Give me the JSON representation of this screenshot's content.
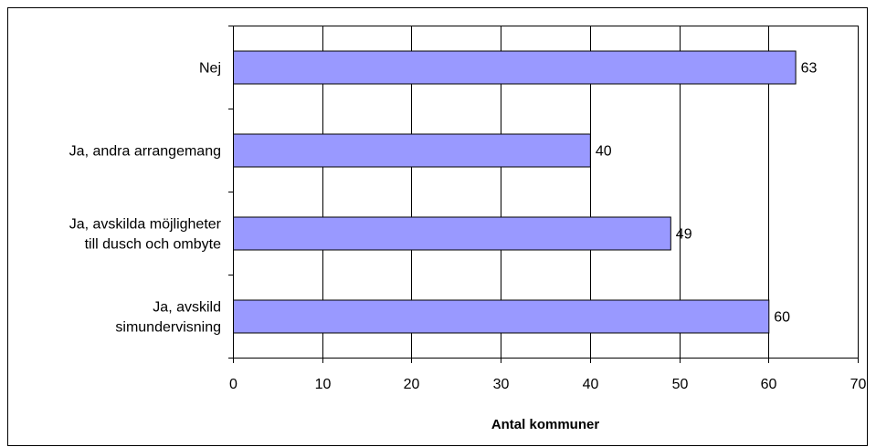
{
  "chart_data": {
    "type": "bar",
    "orientation": "horizontal",
    "title": "",
    "xlabel": "Antal kommuner",
    "ylabel": "",
    "xlim": [
      0,
      70
    ],
    "x_ticks": [
      0,
      10,
      20,
      30,
      40,
      50,
      60,
      70
    ],
    "x_tick_labels": [
      "0",
      "10",
      "20",
      "30",
      "40",
      "50",
      "60",
      "70"
    ],
    "grid": "vertical",
    "legend": "none",
    "categories": [
      [
        "Nej"
      ],
      [
        "Ja, andra arrangemang"
      ],
      [
        "Ja, avskilda möjligheter",
        "till dusch och ombyte"
      ],
      [
        "Ja, avskild",
        "simundervisning"
      ]
    ],
    "values": [
      63,
      40,
      49,
      60
    ],
    "data_labels": [
      "63",
      "40",
      "49",
      "60"
    ],
    "colors": {
      "bar_fill": "#9999ff",
      "bar_stroke": "#000000",
      "grid": "#000000",
      "frame": "#000000"
    }
  }
}
